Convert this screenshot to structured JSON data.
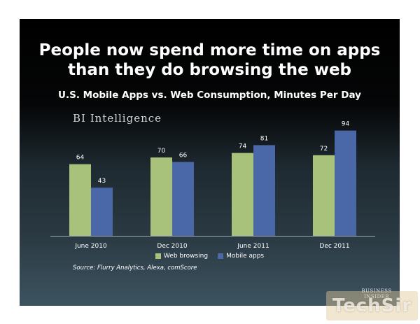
{
  "slide": {
    "title_line1": "People now spend more time on apps",
    "title_line2": "than they do browsing the web",
    "brand": "BI Intelligence",
    "source": "Source: Flurry Analytics, Alexa, comScore",
    "logo_line1": "BUSINESS",
    "logo_line2": "INSIDER",
    "watermark": "TechSir"
  },
  "chart_data": {
    "type": "bar",
    "title": "U.S. Mobile Apps vs. Web Consumption, Minutes Per Day",
    "categories": [
      "June 2010",
      "Dec 2010",
      "June 2011",
      "Dec 2011"
    ],
    "series": [
      {
        "name": "Web browsing",
        "values": [
          64,
          70,
          74,
          72
        ],
        "color": "#a9c27b"
      },
      {
        "name": "Mobile apps",
        "values": [
          43,
          66,
          81,
          94
        ],
        "color": "#4a68a8"
      }
    ],
    "ylim": [
      0,
      100
    ],
    "grid": false,
    "legend": "bottom"
  }
}
